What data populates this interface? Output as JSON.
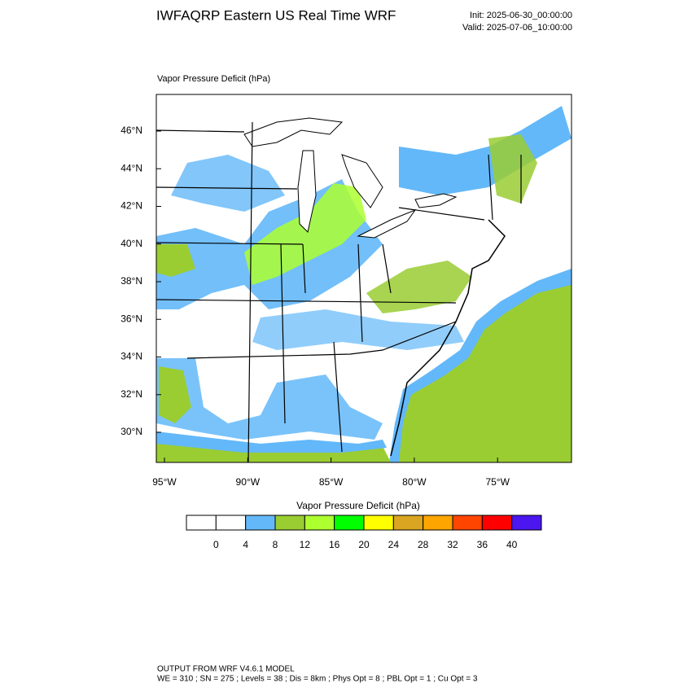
{
  "header": {
    "title": "IWFAQRP Eastern US Real Time WRF",
    "init": "Init: 2025-06-30_00:00:00",
    "valid": "Valid: 2025-07-06_10:00:00"
  },
  "map": {
    "label": "Vapor Pressure Deficit   (hPa)",
    "lat_labels": [
      "46°N",
      "44°N",
      "42°N",
      "40°N",
      "38°N",
      "36°N",
      "34°N",
      "32°N",
      "30°N"
    ],
    "lon_labels": [
      "95°W",
      "90°W",
      "85°W",
      "80°W",
      "75°W"
    ]
  },
  "colorbar": {
    "title": "Vapor Pressure Deficit   (hPa)",
    "colors": [
      "#ffffff",
      "#ffffff",
      "#63b8f9",
      "#9acd32",
      "#adff2f",
      "#00ff00",
      "#ffff00",
      "#daa520",
      "#ffa500",
      "#ff4500",
      "#ff0000",
      "#4b16f0"
    ],
    "labels": [
      "0",
      "4",
      "8",
      "12",
      "16",
      "20",
      "24",
      "28",
      "32",
      "36",
      "40"
    ]
  },
  "footer": {
    "line1": "OUTPUT FROM WRF V4.6.1 MODEL",
    "line2": "WE = 310 ; SN = 275 ; Levels = 38 ; Dis = 8km ; Phys Opt = 8 ; PBL Opt = 1 ; Cu Opt = 3"
  }
}
